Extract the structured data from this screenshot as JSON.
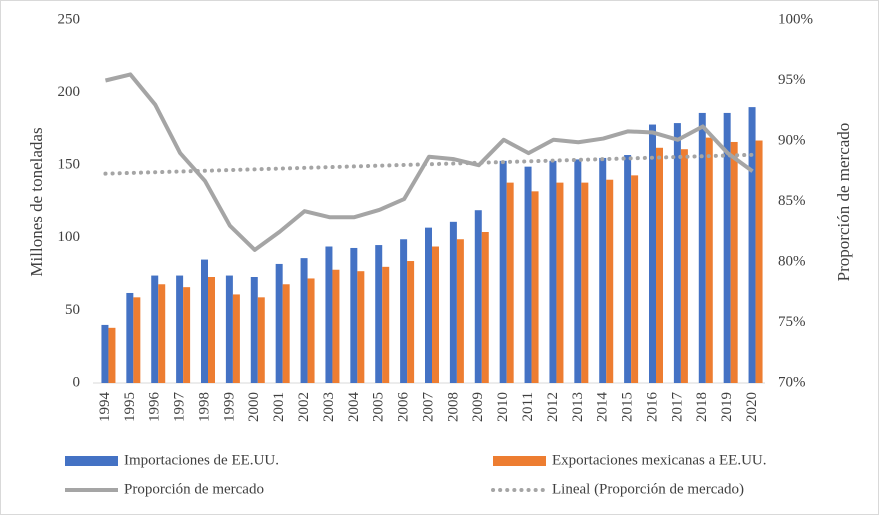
{
  "chart_data": {
    "type": "bar",
    "y_label": "Millones de toneladas",
    "y2_label": "Proporción de mercado",
    "categories": [
      "1994",
      "1995",
      "1996",
      "1997",
      "1998",
      "1999",
      "2000",
      "2001",
      "2002",
      "2003",
      "2004",
      "2005",
      "2006",
      "2007",
      "2008",
      "2009",
      "2010",
      "2011",
      "2012",
      "2013",
      "2014",
      "2015",
      "2016",
      "2017",
      "2018",
      "2019",
      "2020"
    ],
    "series": [
      {
        "name": "Importaciones de EE.UU.",
        "type": "bar",
        "color": "#4472c4",
        "values": [
          40,
          62,
          74,
          74,
          85,
          74,
          73,
          82,
          86,
          94,
          93,
          95,
          99,
          107,
          111,
          119,
          153,
          149,
          153,
          154,
          155,
          157,
          178,
          179,
          186,
          186,
          190
        ]
      },
      {
        "name": "Exportaciones mexicanas a EE.UU.",
        "type": "bar",
        "color": "#ed7d31",
        "values": [
          38,
          59,
          68,
          66,
          73,
          61,
          59,
          68,
          72,
          78,
          77,
          80,
          84,
          94,
          99,
          104,
          138,
          132,
          138,
          138,
          140,
          143,
          162,
          161,
          169,
          166,
          167
        ]
      },
      {
        "name": "Proporción de mercado",
        "type": "line",
        "axis": "y2",
        "color": "#a5a5a5",
        "dash": "solid",
        "values": [
          95,
          95.5,
          93,
          89,
          86.7,
          83,
          81,
          82.5,
          84.2,
          83.7,
          83.7,
          84.3,
          85.2,
          88.7,
          88.5,
          88,
          90.1,
          89,
          90.1,
          89.9,
          90.2,
          90.8,
          90.7,
          90.1,
          91.2,
          89,
          87.5
        ]
      },
      {
        "name": "Lineal (Proporción de mercado)",
        "type": "line",
        "axis": "y2",
        "color": "#a5a5a5",
        "dash": "dotted",
        "values": [
          87.3,
          87.36,
          87.42,
          87.48,
          87.54,
          87.6,
          87.66,
          87.72,
          87.78,
          87.84,
          87.9,
          87.96,
          88.02,
          88.08,
          88.14,
          88.2,
          88.26,
          88.32,
          88.38,
          88.44,
          88.5,
          88.56,
          88.62,
          88.68,
          88.74,
          88.8,
          88.86
        ]
      }
    ],
    "ylim": [
      0,
      250
    ],
    "yticks": [
      0,
      50,
      100,
      150,
      200,
      250
    ],
    "y2lim": [
      70,
      100
    ],
    "y2ticks": [
      {
        "value": 70,
        "label": "70%"
      },
      {
        "value": 75,
        "label": "75%"
      },
      {
        "value": 80,
        "label": "80%"
      },
      {
        "value": 85,
        "label": "85%"
      },
      {
        "value": 90,
        "label": "90%"
      },
      {
        "value": 95,
        "label": "95%"
      },
      {
        "value": 100,
        "label": "100%"
      }
    ],
    "grid": false,
    "legend": "bottom"
  }
}
